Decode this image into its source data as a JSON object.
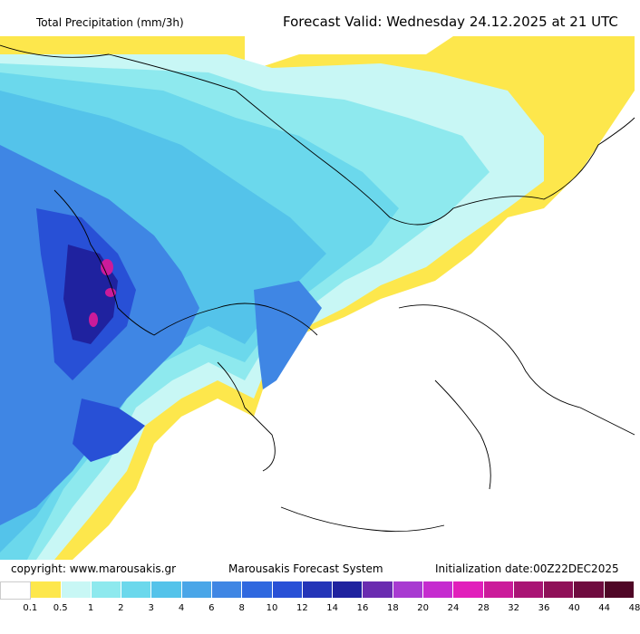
{
  "header": {
    "title": "Total Precipitation (mm/3h)",
    "forecast": "Forecast Valid:  Wednesday 24.12.2025 at 21 UTC"
  },
  "footer": {
    "copyright": "copyright: www.marousakis.gr",
    "system": "Marousakis Forecast System",
    "init": "Initialization date:00Z22DEC2025"
  },
  "legend": {
    "labels": [
      "0.1",
      "0.5",
      "1",
      "2",
      "3",
      "4",
      "6",
      "8",
      "10",
      "12",
      "14",
      "16",
      "18",
      "20",
      "24",
      "28",
      "32",
      "36",
      "40",
      "44",
      "48"
    ],
    "colors": [
      "#ffffff",
      "#fde74c",
      "#c8f7f5",
      "#8ee9ee",
      "#6bd8ec",
      "#54c3ea",
      "#4aa6e8",
      "#3f86e4",
      "#2f68df",
      "#2850d6",
      "#2435b8",
      "#1f229f",
      "#6a2cb0",
      "#a83ad1",
      "#c52ccf",
      "#e11fbb",
      "#cb1b9a",
      "#a91474",
      "#8f1058",
      "#6f0b3f",
      "#4f0626"
    ]
  },
  "map": {
    "colors": {
      "sea": "#ffffff",
      "yellow": "#fde74c",
      "light_cyan": "#c8f7f5",
      "cyan": "#8ee9ee",
      "aqua": "#6bd8ec",
      "sky": "#54c3ea",
      "blue": "#3f86e4",
      "dark_blue": "#2850d6",
      "navy": "#1f229f",
      "magenta": "#cb1b9a",
      "coast": "#000000"
    }
  }
}
